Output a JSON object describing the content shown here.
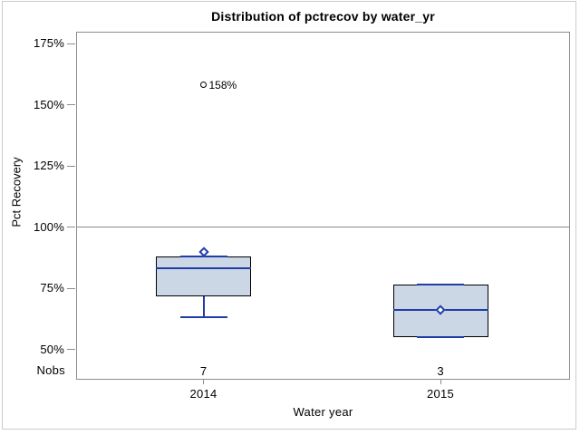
{
  "figure": {
    "title": "Distribution of pctrecov by water_yr",
    "y_axis_title": "Pct Recovery",
    "x_axis_title": "Water year",
    "nobs_row_label": "Nobs"
  },
  "colors": {
    "box_fill": "#ccd7e6",
    "box_border": "#000000",
    "line_blue": "#1f3da6",
    "axis_gray": "#8c8c8c",
    "outer_border": "#cccccc",
    "text": "#000000"
  },
  "chart_data": {
    "type": "box",
    "title": "Distribution of pctrecov by water_yr",
    "xlabel": "Water year",
    "ylabel": "Pct Recovery",
    "categories": [
      "2014",
      "2015"
    ],
    "y_ticks": [
      175,
      150,
      125,
      100,
      75,
      50
    ],
    "y_tick_labels": [
      "175%",
      "150%",
      "125%",
      "100%",
      "75%",
      "50%"
    ],
    "y_unit": "percent",
    "reference_line": 100,
    "grid": false,
    "legend": "none",
    "series": [
      {
        "category": "2014",
        "nobs": 7,
        "mean": 90,
        "median": 83,
        "q1": 71.5,
        "q3": 88,
        "whisker_low": 63,
        "whisker_high": 88,
        "outliers": [
          158
        ],
        "outlier_labels": [
          "158%"
        ]
      },
      {
        "category": "2015",
        "nobs": 3,
        "mean": 66,
        "median": 66,
        "q1": 55,
        "q3": 76.5,
        "whisker_low": 55,
        "whisker_high": 76.5,
        "outliers": [],
        "outlier_labels": []
      }
    ]
  }
}
